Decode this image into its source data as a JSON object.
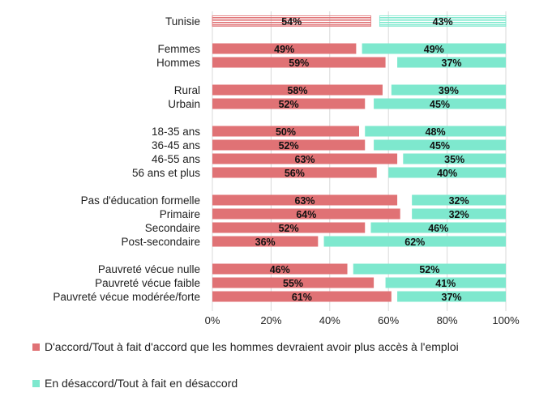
{
  "chart_data": {
    "type": "bar",
    "orientation": "horizontal",
    "stacked": true,
    "categories": [
      "Tunisie",
      "Femmes",
      "Hommes",
      "Rural",
      "Urbain",
      "18-35 ans",
      "36-45 ans",
      "46-55 ans",
      "56 ans et plus",
      "Pas d'éducation formelle",
      "Primaire",
      "Secondaire",
      "Post-secondaire",
      "Pauvreté vécue nulle",
      "Pauvreté vécue faible",
      "Pauvreté vécue modérée/forte"
    ],
    "groups": [
      [
        0
      ],
      [
        1,
        2
      ],
      [
        3,
        4
      ],
      [
        5,
        6,
        7,
        8
      ],
      [
        9,
        10,
        11,
        12
      ],
      [
        13,
        14,
        15
      ]
    ],
    "series": [
      {
        "name": "D'accord/Tout à fait d'accord que les hommes devraient avoir plus accès à l'emploi",
        "color": "#e07275",
        "values": [
          54,
          49,
          59,
          58,
          52,
          50,
          52,
          63,
          56,
          63,
          64,
          52,
          36,
          46,
          55,
          61
        ],
        "labels": [
          "54%",
          "49%",
          "59%",
          "58%",
          "52%",
          "50%",
          "52%",
          "63%",
          "56%",
          "63%",
          "64%",
          "52%",
          "36%",
          "46%",
          "55%",
          "61%"
        ],
        "anchor": "left"
      },
      {
        "name": "En désaccord/Tout à fait en désaccord",
        "color": "#7ee8ce",
        "values": [
          43,
          49,
          37,
          39,
          45,
          48,
          45,
          35,
          40,
          32,
          32,
          46,
          62,
          52,
          41,
          37
        ],
        "labels": [
          "43%",
          "49%",
          "37%",
          "39%",
          "45%",
          "48%",
          "45%",
          "35%",
          "40%",
          "32%",
          "32%",
          "46%",
          "62%",
          "52%",
          "41%",
          "37%"
        ],
        "anchor": "right"
      }
    ],
    "highlight_first_row_hatched": true,
    "xlim": [
      0,
      100
    ],
    "xticks": [
      "0%",
      "20%",
      "40%",
      "60%",
      "80%",
      "100%"
    ],
    "legend_position": "bottom-left"
  }
}
